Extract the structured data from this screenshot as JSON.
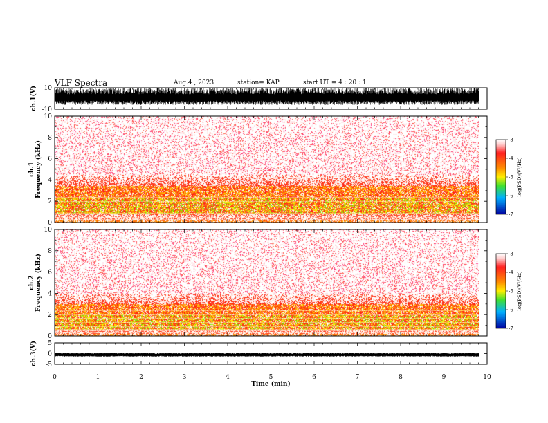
{
  "header": {
    "title": "VLF Spectra",
    "date": "Aug.4 , 2023",
    "station": "station= KAP",
    "start": "start UT = 4 : 20 : 1"
  },
  "chart_data": [
    {
      "type": "line",
      "panel": "ch1-waveform",
      "ylabel": "ch.1(V)",
      "ylim": [
        -10,
        10
      ],
      "yticks": [
        "10",
        "-10"
      ],
      "x_range_min": [
        0,
        9.83
      ],
      "description_values": "saturated waveform spanning roughly -6 to +10 V"
    },
    {
      "type": "heatmap",
      "panel": "ch1-spectrogram",
      "ylabel": "ch.1\nFrequency (kHz)",
      "ylim": [
        0,
        10
      ],
      "yticks": [
        "0",
        "2",
        "4",
        "6",
        "8",
        "10"
      ],
      "x_range_min": [
        0,
        9.83
      ],
      "colorbar": {
        "label": "log(PSD)(V²/Hz)",
        "range": [
          -7,
          -3
        ],
        "ticks": [
          "-3",
          "-4",
          "-5",
          "-6",
          "-7"
        ]
      },
      "bands_khz": {
        "yellow_green": [
          0.8,
          2.3
        ],
        "orange": [
          2.3,
          3.5
        ],
        "red": [
          3.5,
          4.5
        ],
        "sparse_red": [
          4.5,
          10
        ]
      }
    },
    {
      "type": "heatmap",
      "panel": "ch2-spectrogram",
      "ylabel": "ch.2\nFrequency (kHz)",
      "ylim": [
        0,
        10
      ],
      "yticks": [
        "0",
        "2",
        "4",
        "6",
        "8",
        "10"
      ],
      "x_range_min": [
        0,
        9.83
      ],
      "colorbar": {
        "label": "log(PSD)(V²/Hz)",
        "range": [
          -7,
          -3
        ],
        "ticks": [
          "-3",
          "-4",
          "-5",
          "-6",
          "-7"
        ]
      },
      "bands_khz": {
        "yellow_green": [
          0.6,
          2.0
        ],
        "orange": [
          2.0,
          3.0
        ],
        "red": [
          3.0,
          4.0
        ],
        "sparse_red": [
          4.0,
          10
        ]
      }
    },
    {
      "type": "line",
      "panel": "ch3-waveform",
      "ylabel": "ch.3(V)",
      "ylim": [
        -5,
        5
      ],
      "yticks": [
        "5",
        "0",
        "-5"
      ],
      "x_range_min": [
        0,
        9.83
      ],
      "description_values": "narrow band around -0.5 V"
    }
  ],
  "xaxis": {
    "label": "Time (min)",
    "ticks": [
      "0",
      "1",
      "2",
      "3",
      "4",
      "5",
      "6",
      "7",
      "8",
      "9",
      "10"
    ],
    "range": [
      0,
      10
    ]
  },
  "colors": {
    "waveform": "#000000",
    "heat_white": "#ffffff",
    "heat_red": "#ff1e1e",
    "heat_orange": "#ff8c00",
    "heat_yellow": "#ffee00",
    "heat_green": "#6ee000"
  }
}
